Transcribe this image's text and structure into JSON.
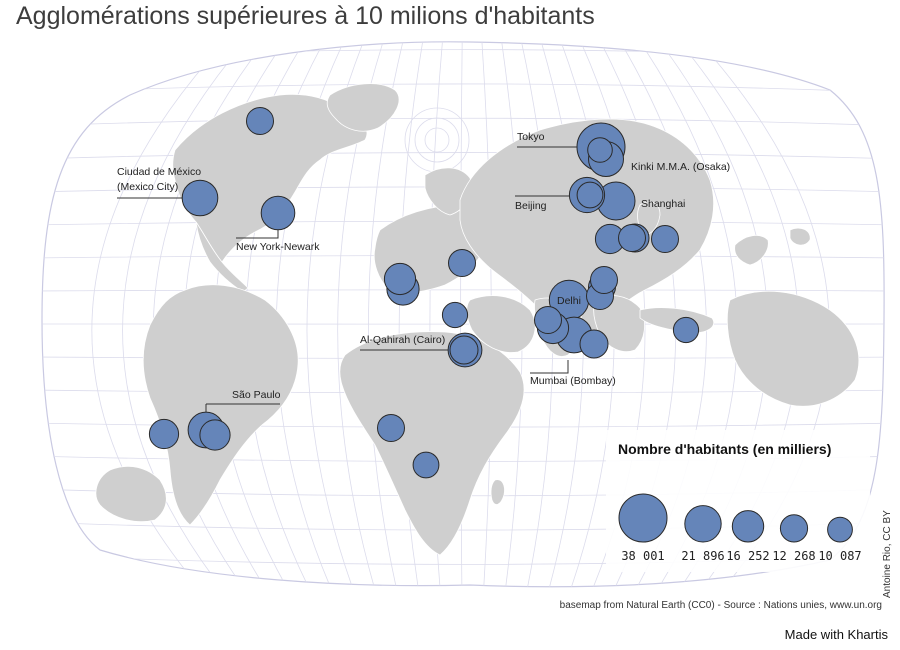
{
  "title": "Agglomérations supérieures à 10 milions d'habitants",
  "legend": {
    "title": "Nombre d'habitants (en milliers)",
    "entries": [
      {
        "label": "38 001",
        "value": 38001
      },
      {
        "label": "21 896",
        "value": 21896
      },
      {
        "label": "16 252",
        "value": 16252
      },
      {
        "label": "12 268",
        "value": 12268
      },
      {
        "label": "10 087",
        "value": 10087
      }
    ]
  },
  "cities": [
    {
      "name": "Tokyo",
      "label": "Tokyo",
      "population": 38001
    },
    {
      "name": "Kinki M.M.A. (Osaka)",
      "label": "Kinki M.M.A. (Osaka)",
      "population": 20238
    },
    {
      "name": "Shanghai",
      "label": "Shanghai",
      "population": 23741
    },
    {
      "name": "Beijing",
      "label": "Beijing",
      "population": 20384
    },
    {
      "name": "Delhi",
      "label": "Delhi",
      "population": 25703
    },
    {
      "name": "Mumbai (Bombay)",
      "label": "Mumbai (Bombay)",
      "population": 21043
    },
    {
      "name": "Al-Qahirah (Cairo)",
      "label": "Al-Qahirah (Cairo)",
      "population": 18772
    },
    {
      "name": "Ciudad de México (Mexico City)",
      "label": "Ciudad de México",
      "label2": "(Mexico City)",
      "population": 20999
    },
    {
      "name": "New York-Newark",
      "label": "New York-Newark",
      "population": 18593
    },
    {
      "name": "São Paulo",
      "label": "São Paulo",
      "population": 21066
    },
    {
      "name": "unlabeled-city",
      "population": 12000
    },
    {
      "name": "unlabeled-city",
      "population": 14000
    },
    {
      "name": "unlabeled-city",
      "population": 15000
    },
    {
      "name": "unlabeled-city",
      "population": 16000
    },
    {
      "name": "unlabeled-city",
      "population": 17000
    },
    {
      "name": "unlabeled-city",
      "population": 12000
    },
    {
      "name": "unlabeled-city",
      "population": 10500
    },
    {
      "name": "unlabeled-city",
      "population": 12000
    },
    {
      "name": "unlabeled-city",
      "population": 11000
    },
    {
      "name": "unlabeled-city",
      "population": 16000
    },
    {
      "name": "unlabeled-city",
      "population": 13000
    },
    {
      "name": "unlabeled-city",
      "population": 12000
    },
    {
      "name": "unlabeled-city",
      "population": 12000
    },
    {
      "name": "unlabeled-city",
      "population": 14000
    },
    {
      "name": "unlabeled-city",
      "population": 13000
    },
    {
      "name": "unlabeled-city",
      "population": 12000
    },
    {
      "name": "unlabeled-city",
      "population": 12000
    },
    {
      "name": "unlabeled-city",
      "population": 11000
    },
    {
      "name": "unlabeled-city",
      "population": 10500
    },
    {
      "name": "unlabeled-city",
      "population": 13000
    },
    {
      "name": "unlabeled-city",
      "population": 12000
    },
    {
      "name": "unlabeled-city",
      "population": 12000
    },
    {
      "name": "unlabeled-city",
      "population": 10000
    }
  ],
  "source": "basemap from Natural Earth (CC0) - Source : Nations unies, www.un.org",
  "credit": "Antoine Rio, CC BY",
  "made_with": "Made with Khartis",
  "colors": {
    "bubble": "#6585b9",
    "land": "#cfcfcf",
    "graticule": "#dcdcec"
  }
}
